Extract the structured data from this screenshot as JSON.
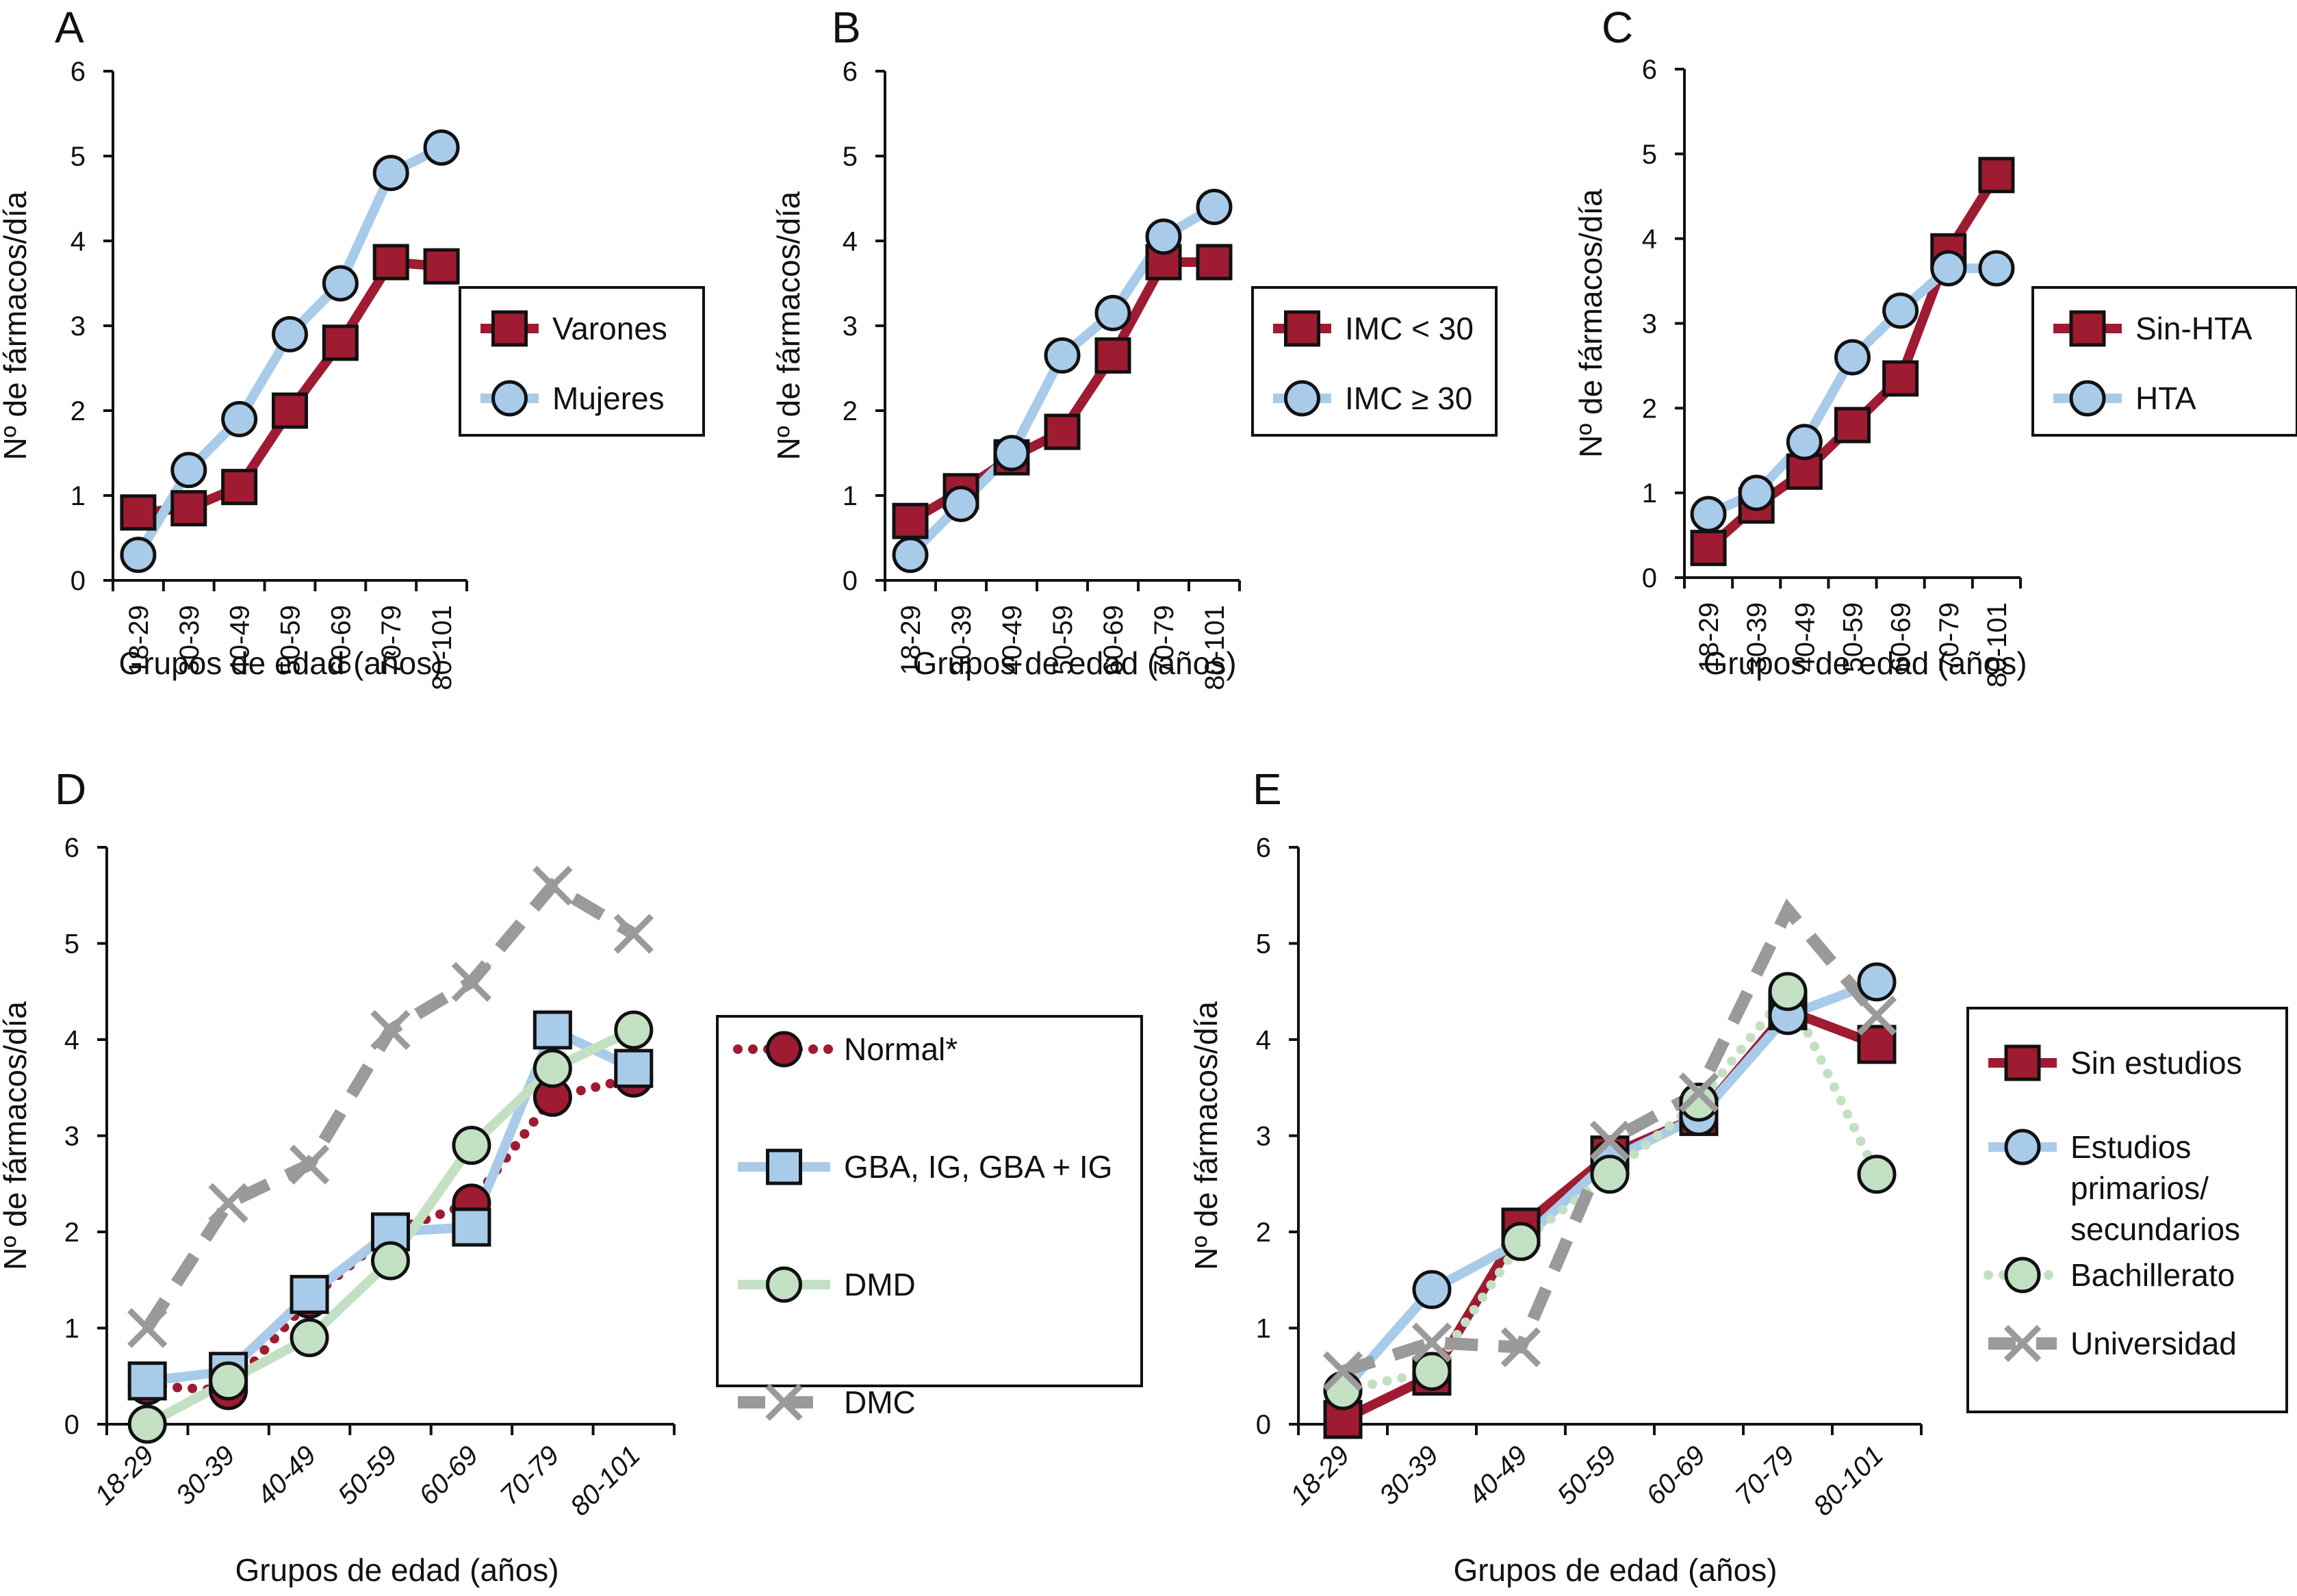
{
  "chart_data": [
    {
      "id": "A",
      "type": "line",
      "panel_label": "A",
      "title": "",
      "xlabel": "Grupos de edad (años)",
      "ylabel": "Nº de fármacos/día",
      "ylim": [
        0,
        6
      ],
      "yticks": [
        "0",
        "1",
        "2",
        "3",
        "4",
        "5",
        "6"
      ],
      "categories": [
        "18-29",
        "30-39",
        "40-49",
        "50-59",
        "60-69",
        "70-79",
        "80-101"
      ],
      "xtick_rotation": "vertical",
      "grid": false,
      "legend_position": "right",
      "series": [
        {
          "name": "Varones",
          "style": "solid",
          "marker": "square",
          "color": "#9e1b32",
          "values": [
            0.8,
            0.85,
            1.1,
            2.0,
            2.8,
            3.75,
            3.7
          ]
        },
        {
          "name": "Mujeres",
          "style": "solid",
          "marker": "circle",
          "color": "#a9cbea",
          "values": [
            0.3,
            1.3,
            1.9,
            2.9,
            3.5,
            4.8,
            5.1
          ]
        }
      ]
    },
    {
      "id": "B",
      "type": "line",
      "panel_label": "B",
      "title": "",
      "xlabel": "Grupos de edad (años)",
      "ylabel": "Nº de fármacos/día",
      "ylim": [
        0,
        6
      ],
      "yticks": [
        "0",
        "1",
        "2",
        "3",
        "4",
        "5",
        "6"
      ],
      "categories": [
        "18-29",
        "30-39",
        "40-49",
        "50-59",
        "60-69",
        "70-79",
        "80-101"
      ],
      "xtick_rotation": "vertical",
      "grid": false,
      "legend_position": "right",
      "series": [
        {
          "name": "IMC < 30",
          "style": "solid",
          "marker": "square",
          "color": "#9e1b32",
          "values": [
            0.7,
            1.05,
            1.45,
            1.75,
            2.65,
            3.75,
            3.75
          ]
        },
        {
          "name": "IMC ≥ 30",
          "style": "solid",
          "marker": "circle",
          "color": "#a9cbea",
          "values": [
            0.3,
            0.9,
            1.5,
            2.65,
            3.15,
            4.05,
            4.4
          ]
        }
      ]
    },
    {
      "id": "C",
      "type": "line",
      "panel_label": "C",
      "title": "",
      "xlabel": "Grupos de edad (años)",
      "ylabel": "Nº de fármacos/día",
      "ylim": [
        0,
        6
      ],
      "yticks": [
        "0",
        "1",
        "2",
        "3",
        "4",
        "5",
        "6"
      ],
      "categories": [
        "18-29",
        "30-39",
        "40-49",
        "50-59",
        "60-69",
        "70-79",
        "80-101"
      ],
      "xtick_rotation": "vertical",
      "grid": false,
      "legend_position": "right",
      "series": [
        {
          "name": "Sin-HTA",
          "style": "solid",
          "marker": "square",
          "color": "#9e1b32",
          "values": [
            0.35,
            0.85,
            1.25,
            1.8,
            2.35,
            3.85,
            4.75
          ]
        },
        {
          "name": "HTA",
          "style": "solid",
          "marker": "circle",
          "color": "#a9cbea",
          "values": [
            0.75,
            1.0,
            1.6,
            2.6,
            3.15,
            3.65,
            3.65
          ]
        }
      ]
    },
    {
      "id": "D",
      "type": "line",
      "panel_label": "D",
      "title": "",
      "xlabel": "Grupos de edad (años)",
      "ylabel": "Nº de fármacos/día",
      "ylim": [
        0,
        6
      ],
      "yticks": [
        "0",
        "1",
        "2",
        "3",
        "4",
        "5",
        "6"
      ],
      "categories": [
        "18-29",
        "30-39",
        "40-49",
        "50-59",
        "60-69",
        "70-79",
        "80-101"
      ],
      "xtick_rotation": "diagonal",
      "grid": false,
      "legend_position": "right",
      "series": [
        {
          "name": "Normal*",
          "style": "dotted",
          "marker": "circle",
          "color": "#9e1b32",
          "values": [
            0.4,
            0.35,
            1.3,
            2.0,
            2.3,
            3.4,
            3.6
          ]
        },
        {
          "name": "GBA, IG, GBA + IG",
          "style": "solid",
          "marker": "square",
          "color": "#a9cbea",
          "values": [
            0.45,
            0.55,
            1.35,
            2.0,
            2.05,
            4.1,
            3.7
          ]
        },
        {
          "name": "DMD",
          "style": "solid",
          "marker": "circle",
          "color": "#c3e0c3",
          "values": [
            0.0,
            0.45,
            0.9,
            1.7,
            2.9,
            3.7,
            4.1
          ]
        },
        {
          "name": "DMC",
          "style": "dashed",
          "marker": "x",
          "color": "#9a9a9a",
          "values": [
            1.0,
            2.3,
            2.7,
            4.1,
            4.6,
            5.6,
            5.1
          ]
        }
      ]
    },
    {
      "id": "E",
      "type": "line",
      "panel_label": "E",
      "title": "",
      "xlabel": "Grupos de edad (años)",
      "ylabel": "Nº de fármacos/día",
      "ylim": [
        0,
        6
      ],
      "yticks": [
        "0",
        "1",
        "2",
        "3",
        "4",
        "5",
        "6"
      ],
      "categories": [
        "18-29",
        "30-39",
        "40-49",
        "50-59",
        "60-69",
        "70-79",
        "80-101"
      ],
      "xtick_rotation": "diagonal",
      "grid": false,
      "legend_position": "right",
      "series": [
        {
          "name": "Sin estudios",
          "style": "solid",
          "marker": "square",
          "color": "#9e1b32",
          "values": [
            0.05,
            0.5,
            2.05,
            2.8,
            3.2,
            4.3,
            3.95
          ]
        },
        {
          "name": "Estudios primarios/ secundarios",
          "legend_lines": [
            "Estudios",
            "primarios/",
            "secundarios"
          ],
          "style": "solid",
          "marker": "circle",
          "color": "#a9cbea",
          "values": [
            0.35,
            1.4,
            1.9,
            2.75,
            3.2,
            4.25,
            4.6
          ]
        },
        {
          "name": "Bachillerato",
          "style": "dotted",
          "marker": "circle",
          "color": "#c3e0c3",
          "values": [
            0.35,
            0.55,
            1.9,
            2.6,
            3.35,
            4.5,
            2.6
          ]
        },
        {
          "name": "Universidad",
          "style": "dashed",
          "marker": "x",
          "color": "#9a9a9a",
          "values": [
            0.55,
            0.85,
            0.8,
            2.95,
            3.45,
            5.35,
            4.25
          ],
          "hidden_markers": [
            5
          ]
        }
      ]
    }
  ]
}
